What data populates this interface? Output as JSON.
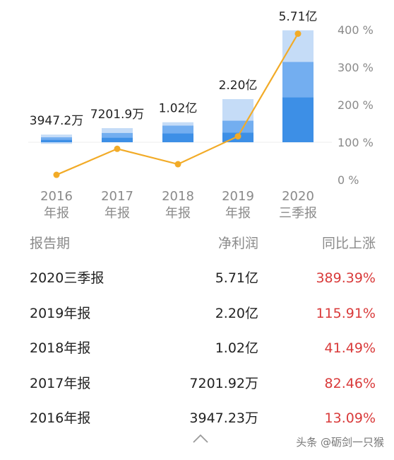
{
  "chart_data": {
    "type": "bar+line",
    "categories": [
      [
        "2016",
        "年报"
      ],
      [
        "2017",
        "年报"
      ],
      [
        "2018",
        "年报"
      ],
      [
        "2019",
        "年报"
      ],
      [
        "2020",
        "三季报"
      ]
    ],
    "bar_series": {
      "values_yi": [
        0.39472,
        0.72019,
        1.02,
        2.2,
        5.71
      ],
      "labels": [
        "3947.2万",
        "7201.9万",
        "1.02亿",
        "2.20亿",
        "5.71亿"
      ],
      "segments_yi": [
        [
          0.13,
          0.13,
          0.13
        ],
        [
          0.24,
          0.24,
          0.24
        ],
        [
          0.45,
          0.4,
          0.17
        ],
        [
          0.5,
          0.6,
          1.1
        ],
        [
          2.3,
          1.8,
          1.61
        ]
      ],
      "negative_segment_yi": [
        0.15,
        0,
        0,
        0,
        0
      ],
      "segment_colors": [
        "#3d8fe6",
        "#73aef0",
        "#c5dcf7"
      ]
    },
    "line_series": {
      "values_percent": [
        13.09,
        82.46,
        41.49,
        115.91,
        389.39
      ],
      "color": "#f2ab27"
    },
    "right_axis": {
      "ticks": [
        0,
        100,
        200,
        300,
        400
      ],
      "tick_labels": [
        "0 %",
        "100 %",
        "200 %",
        "300 %",
        "400 %"
      ],
      "range": [
        0,
        400
      ]
    },
    "grid": false,
    "legend": "none"
  },
  "table": {
    "headers": {
      "period": "报告期",
      "profit": "净利润",
      "growth": "同比上涨"
    },
    "rows": [
      {
        "period": "2020三季报",
        "profit": "5.71亿",
        "growth": "389.39%"
      },
      {
        "period": "2019年报",
        "profit": "2.20亿",
        "growth": "115.91%"
      },
      {
        "period": "2018年报",
        "profit": "1.02亿",
        "growth": "41.49%"
      },
      {
        "period": "2017年报",
        "profit": "7201.92万",
        "growth": "82.46%"
      },
      {
        "period": "2016年报",
        "profit": "3947.23万",
        "growth": "13.09%"
      }
    ]
  },
  "footer": {
    "collapse_icon": "chevron-up-icon",
    "watermark": "头条 @砺剑一只猴"
  }
}
